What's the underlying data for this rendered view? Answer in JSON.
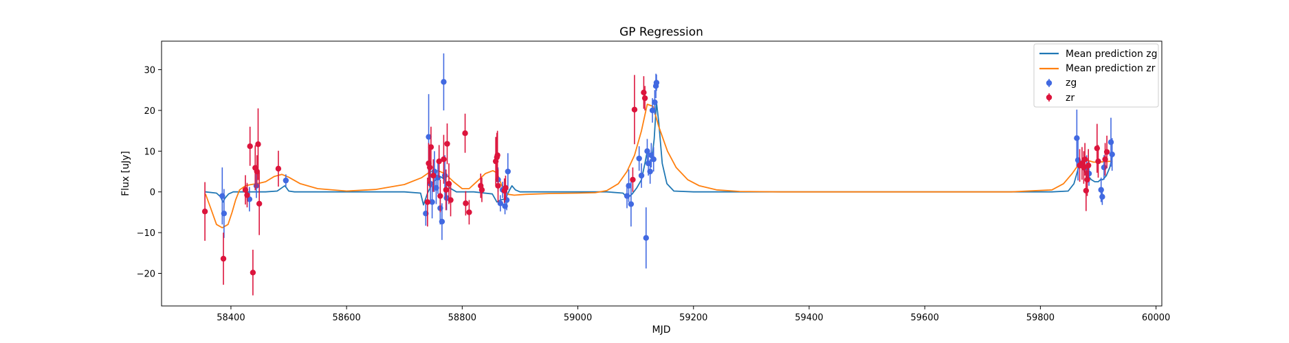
{
  "chart_data": {
    "type": "scatter",
    "title": "GP Regression",
    "xlabel": "MJD",
    "ylabel": "Flux [uJy]",
    "xlim": [
      58280,
      60010
    ],
    "ylim": [
      -28,
      37
    ],
    "xticks": [
      58400,
      58600,
      58800,
      59000,
      59200,
      59400,
      59600,
      59800,
      60000
    ],
    "yticks": [
      -20,
      -10,
      0,
      10,
      20,
      30
    ],
    "grid": false,
    "legend_position": "top-right",
    "legend": [
      "Mean prediction zg",
      "Mean prediction zr",
      "zg",
      "zr"
    ],
    "colors": {
      "zg_line": "#1f77b4",
      "zr_line": "#ff7f0e",
      "zg_points": "#4169e1",
      "zr_points": "#dc143c"
    },
    "lines": [
      {
        "name": "Mean prediction zg",
        "x": [
          58356,
          58375,
          58382,
          58386,
          58390,
          58396,
          58404,
          58460,
          58480,
          58488,
          58493,
          58496,
          58500,
          58510,
          58700,
          58728,
          58733,
          58740,
          58750,
          58762,
          58770,
          58778,
          58790,
          58820,
          58852,
          58860,
          58866,
          58872,
          58877,
          58882,
          58886,
          58892,
          58900,
          59050,
          59078,
          59086,
          59094,
          59102,
          59110,
          59116,
          59120,
          59124,
          59128,
          59132,
          59136,
          59140,
          59146,
          59154,
          59166,
          59200,
          59400,
          59600,
          59820,
          59848,
          59858,
          59864,
          59868,
          59876,
          59882,
          59888,
          59894,
          59900,
          59904,
          59908,
          59914,
          59920,
          59925
        ],
        "y": [
          0,
          -0.3,
          -1.2,
          -2.5,
          -1.5,
          -0.5,
          0,
          0,
          0.2,
          1,
          1.5,
          1,
          0.2,
          0,
          0,
          -0.3,
          -3.2,
          -0.3,
          2.5,
          3.8,
          3,
          1,
          0,
          0,
          -0.5,
          -2.5,
          -2,
          -1.8,
          -1,
          0.5,
          1.5,
          0.5,
          0,
          0,
          -0.3,
          -1.5,
          -0.5,
          1,
          3,
          7,
          10,
          9,
          8,
          13,
          22,
          17,
          7,
          2,
          0.2,
          0,
          0,
          0,
          0,
          0.2,
          2,
          5,
          7,
          5,
          4,
          3,
          2.5,
          2.5,
          3,
          3,
          4,
          6,
          9
        ]
      },
      {
        "name": "Mean prediction zr",
        "x": [
          58356,
          58365,
          58375,
          58385,
          58395,
          58402,
          58408,
          58415,
          58425,
          58435,
          58445,
          58460,
          58475,
          58488,
          58500,
          58520,
          58550,
          58600,
          58650,
          58700,
          58730,
          58745,
          58758,
          58770,
          58785,
          58800,
          58812,
          58825,
          58840,
          58853,
          58860,
          58866,
          58872,
          58880,
          58890,
          58910,
          58950,
          59000,
          59030,
          59050,
          59070,
          59085,
          59098,
          59110,
          59120,
          59130,
          59140,
          59155,
          59170,
          59190,
          59210,
          59240,
          59280,
          59350,
          59450,
          59600,
          59750,
          59820,
          59840,
          59855,
          59865,
          59872,
          59878,
          59885,
          59892,
          59900,
          59910,
          59920,
          59925
        ],
        "y": [
          -0.5,
          -4,
          -8,
          -8.8,
          -8,
          -5,
          -2,
          0.5,
          1.5,
          1.8,
          2,
          2.5,
          3.8,
          4.3,
          3.6,
          2,
          0.8,
          0.2,
          0.6,
          1.8,
          3.5,
          5,
          5.2,
          4.5,
          2.5,
          0.8,
          0.8,
          2.5,
          4.5,
          5.2,
          4.7,
          2.5,
          0.2,
          -0.6,
          -0.8,
          -0.6,
          -0.4,
          -0.3,
          -0.2,
          0.3,
          2,
          5,
          9,
          15,
          21.5,
          21,
          16,
          10,
          6,
          3,
          1.5,
          0.5,
          0.1,
          0,
          0,
          0,
          0,
          0.5,
          2,
          4.5,
          6.5,
          7.5,
          7.8,
          7.6,
          7.3,
          7.3,
          7.4,
          7.5,
          7.6
        ]
      }
    ],
    "series": [
      {
        "name": "zg",
        "points": [
          {
            "x": 58385,
            "y": -1,
            "err": 7
          },
          {
            "x": 58388,
            "y": -5.3,
            "err": 6
          },
          {
            "x": 58432,
            "y": -1.8,
            "err": 3
          },
          {
            "x": 58444,
            "y": 1.5,
            "err": 3
          },
          {
            "x": 58495,
            "y": 2.8,
            "err": 1.5
          },
          {
            "x": 58737,
            "y": -5.3,
            "err": 3
          },
          {
            "x": 58742,
            "y": 13.5,
            "err": 10.5
          },
          {
            "x": 58745,
            "y": 2,
            "err": 5
          },
          {
            "x": 58748,
            "y": -2.5,
            "err": 4
          },
          {
            "x": 58752,
            "y": 5,
            "err": 5
          },
          {
            "x": 58755,
            "y": 1,
            "err": 4
          },
          {
            "x": 58758,
            "y": 3.5,
            "err": 4
          },
          {
            "x": 58762,
            "y": -4,
            "err": 4
          },
          {
            "x": 58765,
            "y": -7.3,
            "err": 4.5
          },
          {
            "x": 58768,
            "y": 27,
            "err": 7
          },
          {
            "x": 58770,
            "y": 4,
            "err": 5
          },
          {
            "x": 58773,
            "y": -1.5,
            "err": 3
          },
          {
            "x": 58862,
            "y": 3,
            "err": 3
          },
          {
            "x": 58866,
            "y": -2.8,
            "err": 2
          },
          {
            "x": 58870,
            "y": 0.5,
            "err": 2
          },
          {
            "x": 58874,
            "y": -3.5,
            "err": 2
          },
          {
            "x": 58877,
            "y": -2,
            "err": 2.5
          },
          {
            "x": 58879,
            "y": 5,
            "err": 4.5
          },
          {
            "x": 59085,
            "y": -1,
            "err": 3
          },
          {
            "x": 59088,
            "y": 1.5,
            "err": 4
          },
          {
            "x": 59092,
            "y": -3,
            "err": 5.5
          },
          {
            "x": 59106,
            "y": 8.2,
            "err": 3
          },
          {
            "x": 59110,
            "y": 4,
            "err": 3
          },
          {
            "x": 59118,
            "y": -11.3,
            "err": 7.5
          },
          {
            "x": 59120,
            "y": 10,
            "err": 3
          },
          {
            "x": 59122,
            "y": 7,
            "err": 3
          },
          {
            "x": 59125,
            "y": 5,
            "err": 3
          },
          {
            "x": 59127,
            "y": 9,
            "err": 3
          },
          {
            "x": 59129,
            "y": 20,
            "err": 3
          },
          {
            "x": 59131,
            "y": 8,
            "err": 3
          },
          {
            "x": 59133,
            "y": 22,
            "err": 3
          },
          {
            "x": 59135,
            "y": 26,
            "err": 3
          },
          {
            "x": 59136,
            "y": 26.8,
            "err": 2
          },
          {
            "x": 59863,
            "y": 13.2,
            "err": 7
          },
          {
            "x": 59865,
            "y": 7.8,
            "err": 5
          },
          {
            "x": 59880,
            "y": 6,
            "err": 3
          },
          {
            "x": 59884,
            "y": 4.5,
            "err": 3
          },
          {
            "x": 59905,
            "y": 0.5,
            "err": 3
          },
          {
            "x": 59907,
            "y": -1.2,
            "err": 2
          },
          {
            "x": 59910,
            "y": 6,
            "err": 3
          },
          {
            "x": 59922,
            "y": 12.2,
            "err": 6
          },
          {
            "x": 59924,
            "y": 9.2,
            "err": 4
          }
        ]
      },
      {
        "name": "zr",
        "points": [
          {
            "x": 58355,
            "y": -4.8,
            "err": 7.2
          },
          {
            "x": 58387,
            "y": -16.4,
            "err": 6.4
          },
          {
            "x": 58425,
            "y": 0.5,
            "err": 3.6
          },
          {
            "x": 58428,
            "y": -0.8,
            "err": 3
          },
          {
            "x": 58433,
            "y": 11.2,
            "err": 4.8
          },
          {
            "x": 58438,
            "y": -19.8,
            "err": 5.6
          },
          {
            "x": 58442,
            "y": 5.9,
            "err": 5.5
          },
          {
            "x": 58445,
            "y": 5,
            "err": 4
          },
          {
            "x": 58447,
            "y": 11.7,
            "err": 8.8
          },
          {
            "x": 58449,
            "y": -2.9,
            "err": 7.7
          },
          {
            "x": 58482,
            "y": 5.7,
            "err": 4.4
          },
          {
            "x": 58740,
            "y": -2.5,
            "err": 6
          },
          {
            "x": 58742,
            "y": 7,
            "err": 5
          },
          {
            "x": 58744,
            "y": 6,
            "err": 5
          },
          {
            "x": 58746,
            "y": 11,
            "err": 5
          },
          {
            "x": 58750,
            "y": 4,
            "err": 4
          },
          {
            "x": 58760,
            "y": 7.5,
            "err": 4
          },
          {
            "x": 58762,
            "y": -1,
            "err": 4
          },
          {
            "x": 58768,
            "y": 8,
            "err": 6
          },
          {
            "x": 58772,
            "y": 0.5,
            "err": 5
          },
          {
            "x": 58774,
            "y": 11.8,
            "err": 5
          },
          {
            "x": 58777,
            "y": 2,
            "err": 5
          },
          {
            "x": 58780,
            "y": -2,
            "err": 4
          },
          {
            "x": 58805,
            "y": 14.4,
            "err": 4.8
          },
          {
            "x": 58806,
            "y": -2.8,
            "err": 3
          },
          {
            "x": 58812,
            "y": -5,
            "err": 3
          },
          {
            "x": 58832,
            "y": 1.5,
            "err": 3
          },
          {
            "x": 58834,
            "y": 0.5,
            "err": 3
          },
          {
            "x": 58858,
            "y": 7.5,
            "err": 6
          },
          {
            "x": 58860,
            "y": 8.5,
            "err": 6
          },
          {
            "x": 58861,
            "y": 9,
            "err": 6
          },
          {
            "x": 58862,
            "y": 1.5,
            "err": 4
          },
          {
            "x": 58873,
            "y": 0.3,
            "err": 3
          },
          {
            "x": 58875,
            "y": 1,
            "err": 3
          },
          {
            "x": 59095,
            "y": 3,
            "err": 3
          },
          {
            "x": 59098,
            "y": 20.2,
            "err": 8.5
          },
          {
            "x": 59114,
            "y": 24.4,
            "err": 4
          },
          {
            "x": 59116,
            "y": 23,
            "err": 3
          },
          {
            "x": 59868,
            "y": 6.5,
            "err": 4
          },
          {
            "x": 59872,
            "y": 7,
            "err": 4
          },
          {
            "x": 59875,
            "y": 6,
            "err": 4
          },
          {
            "x": 59877,
            "y": 8,
            "err": 4
          },
          {
            "x": 59879,
            "y": 0.3,
            "err": 5
          },
          {
            "x": 59881,
            "y": 3,
            "err": 4
          },
          {
            "x": 59883,
            "y": 6.5,
            "err": 4
          },
          {
            "x": 59898,
            "y": 10.7,
            "err": 6
          },
          {
            "x": 59900,
            "y": 7.5,
            "err": 4
          },
          {
            "x": 59912,
            "y": 8,
            "err": 4
          },
          {
            "x": 59915,
            "y": 9.8,
            "err": 4
          }
        ]
      }
    ]
  }
}
